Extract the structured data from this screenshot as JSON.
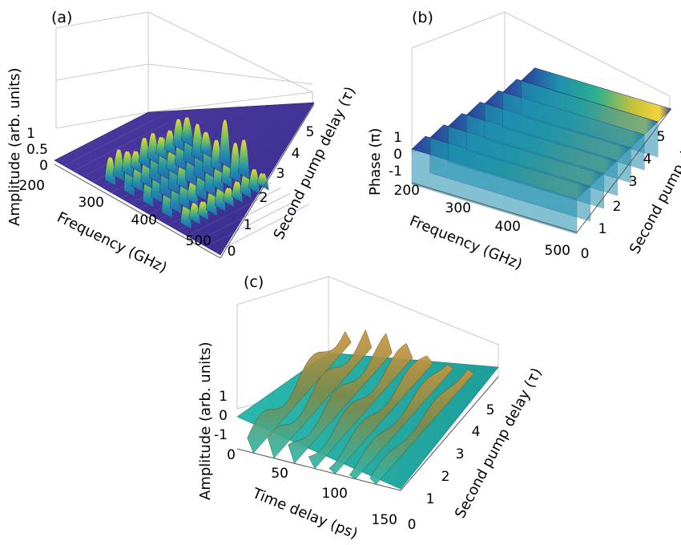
{
  "figure": {
    "background": "#ffffff",
    "palette": {
      "viridis": [
        "#3b1f8f",
        "#2c5fb0",
        "#1f8fae",
        "#2bb08e",
        "#78c35b",
        "#c9c13a",
        "#f2d53a"
      ],
      "copper_teal": [
        "#1f9e99",
        "#2ab8ad",
        "#5aa58a",
        "#9a8a4e",
        "#c9943c",
        "#6a6a3c"
      ]
    }
  },
  "chart_data": [
    {
      "type": "surface",
      "panel_label": "(a)",
      "xlabel": "Frequency (GHz)",
      "ylabel": "Second pump delay (τ)",
      "zlabel": "Amplitude (arb. units)",
      "xticks": [
        "200",
        "300",
        "400",
        "500"
      ],
      "yticks": [
        "0",
        "1",
        "2",
        "3",
        "4",
        "5"
      ],
      "zticks": [
        "0",
        "0.5",
        "1"
      ],
      "xlim": [
        200,
        550
      ],
      "ylim": [
        0,
        5.5
      ],
      "zlim": [
        0,
        1
      ],
      "colormap": "viridis",
      "peak_frequencies": [
        260,
        290,
        330,
        370,
        410,
        450
      ],
      "description_series": [
        {
          "x": 300,
          "peak_amplitude": 0.6
        },
        {
          "x": 340,
          "peak_amplitude": 0.85
        },
        {
          "x": 380,
          "peak_amplitude": 1.0
        },
        {
          "x": 420,
          "peak_amplitude": 0.8
        },
        {
          "x": 460,
          "peak_amplitude": 0.5
        }
      ]
    },
    {
      "type": "surface",
      "panel_label": "(b)",
      "xlabel": "Frequency (GHz)",
      "ylabel": "Second pump delay (τ)",
      "zlabel": "Phase (π)",
      "xticks": [
        "200",
        "300",
        "400",
        "500"
      ],
      "yticks": [
        "0",
        "1",
        "2",
        "3",
        "4",
        "5"
      ],
      "zticks": [
        "-1",
        "0",
        "1"
      ],
      "xlim": [
        200,
        550
      ],
      "ylim": [
        0,
        5.5
      ],
      "zlim": [
        -1,
        1
      ],
      "colormap": "viridis",
      "wrap_steps_at_delay": [
        0.5,
        1.5,
        2.5,
        3.5,
        4.5,
        5.5
      ]
    },
    {
      "type": "surface",
      "panel_label": "(c)",
      "xlabel": "Time delay (ps)",
      "ylabel": "Second pump delay (τ)",
      "zlabel": "Amplitude (arb. units)",
      "xticks": [
        "0",
        "50",
        "100",
        "150"
      ],
      "yticks": [
        "0",
        "1",
        "2",
        "3",
        "4",
        "5"
      ],
      "zticks": [
        "-1",
        "0",
        "1"
      ],
      "xlim": [
        0,
        160
      ],
      "ylim": [
        0,
        5.5
      ],
      "zlim": [
        -1,
        1
      ],
      "colormap": "copper_teal",
      "ridge_times": [
        10,
        30,
        50,
        70,
        90,
        110,
        130
      ]
    }
  ]
}
